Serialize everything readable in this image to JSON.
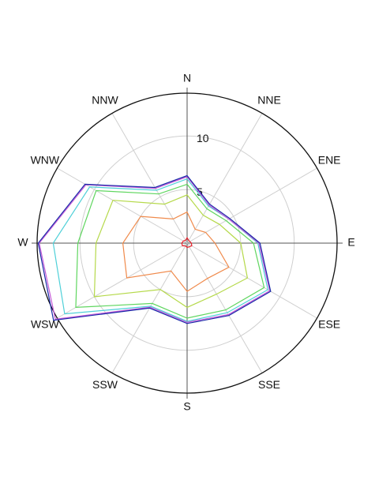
{
  "chart_data": {
    "type": "stacked-polar-line",
    "categories": [
      "N",
      "NNE",
      "ENE",
      "E",
      "ESE",
      "SSE",
      "S",
      "SSW",
      "WSW",
      "W",
      "WNW",
      "NNW"
    ],
    "rlim": [
      0,
      14
    ],
    "rticks": [
      5,
      10
    ],
    "grid": true,
    "series": [
      {
        "color": "#e8202a",
        "values": [
          0.5,
          0.3,
          0.3,
          0.4,
          0.5,
          0.4,
          0.4,
          0.3,
          0.5,
          0.5,
          0.4,
          0.3
        ]
      },
      {
        "color": "#f08a4b",
        "values": [
          2.4,
          1.2,
          1.7,
          2.2,
          4.0,
          3.4,
          4.1,
          2.7,
          6.0,
          5.5,
          4.6,
          2.3
        ]
      },
      {
        "color": "#b5d94a",
        "values": [
          1.6,
          1.5,
          1.5,
          2.4,
          2.0,
          1.7,
          1.5,
          2.0,
          3.5,
          2.5,
          3.0,
          1.6
        ]
      },
      {
        "color": "#5fd65f",
        "values": [
          1.0,
          0.7,
          0.7,
          1.2,
          1.8,
          1.7,
          1.0,
          1.5,
          2.0,
          1.7,
          1.8,
          1.1
        ]
      },
      {
        "color": "#4fd0d8",
        "values": [
          0.5,
          0.3,
          0.3,
          0.4,
          0.4,
          0.3,
          0.3,
          0.3,
          1.2,
          2.3,
          0.7,
          0.4
        ]
      },
      {
        "color": "#c45ad8",
        "values": [
          0.2,
          0.1,
          0.0,
          0.1,
          0.2,
          0.2,
          0.1,
          0.1,
          1.0,
          1.3,
          0.4,
          0.2
        ]
      },
      {
        "color": "#1a2aa8",
        "values": [
          0.1,
          0.1,
          0.1,
          0.1,
          0.1,
          0.1,
          0.1,
          0.1,
          0.2,
          0.1,
          0.1,
          0.1
        ]
      }
    ]
  }
}
